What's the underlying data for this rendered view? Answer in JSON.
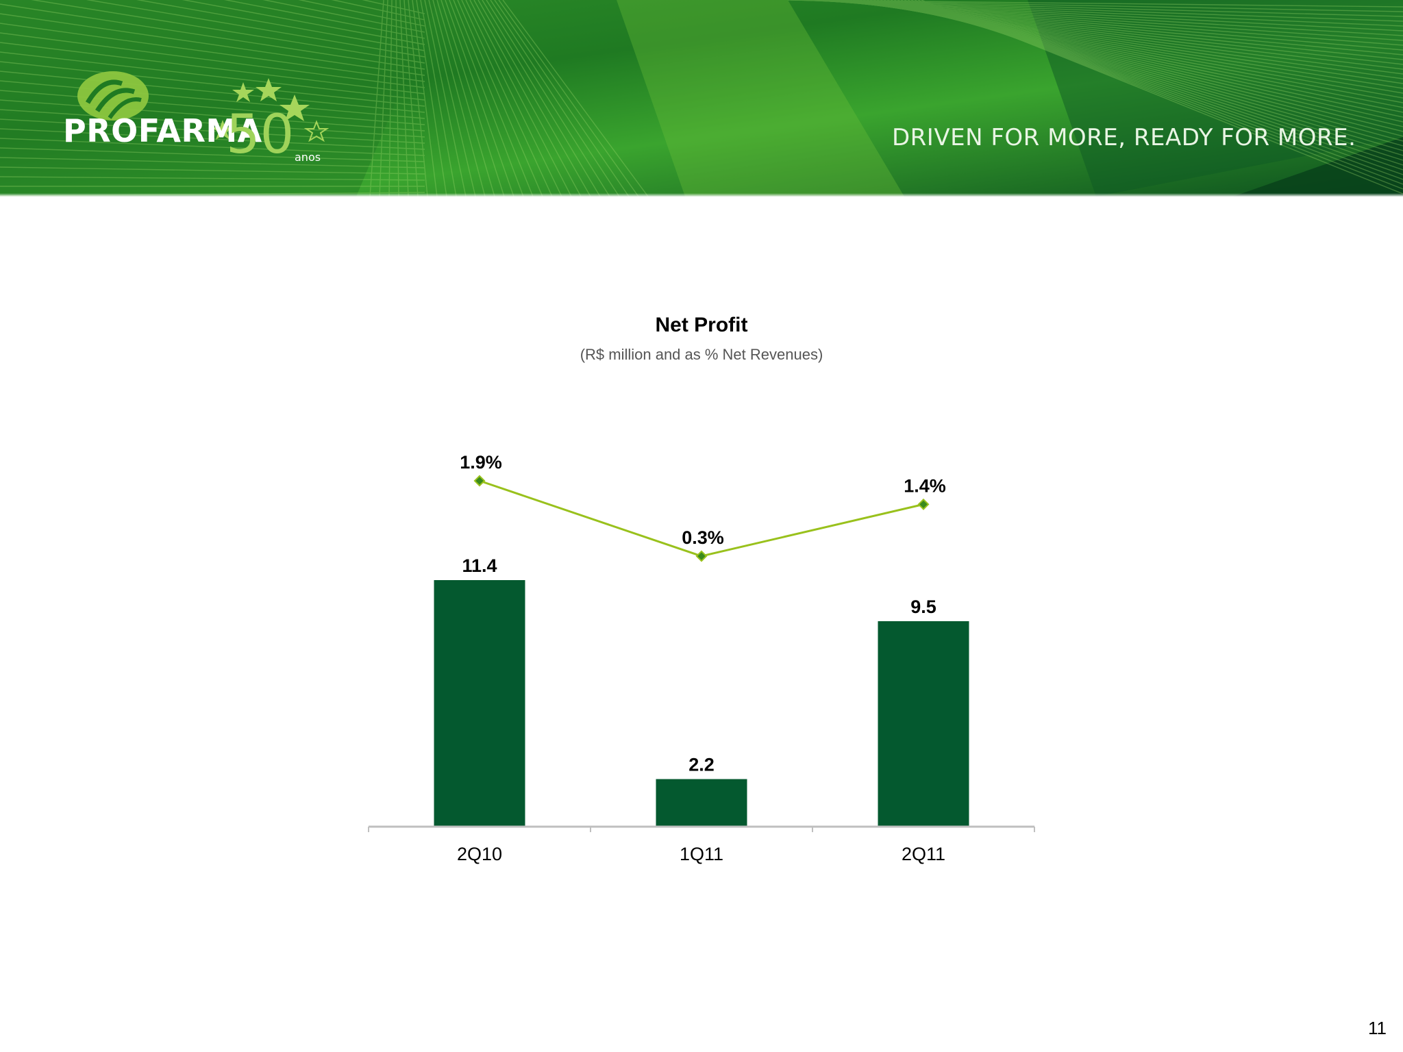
{
  "banner": {
    "brand_name": "PROFARMA",
    "brand_years": "50",
    "brand_anos": "anos",
    "tagline": "DRIVEN FOR MORE, READY FOR MORE.",
    "icons": [
      "profarma-logo-icon",
      "star-icon"
    ]
  },
  "colors": {
    "bar": "#04592F",
    "line": "#99C11C",
    "marker": "#3A8A1C",
    "axis": "#BFBFBF",
    "banner_dark": "#0E5A24",
    "banner_light": "#6CC03A"
  },
  "chart_data": {
    "type": "bar",
    "title": "Net Profit",
    "subtitle": "(R$ million and as % Net Revenues)",
    "categories": [
      "2Q10",
      "1Q11",
      "2Q11"
    ],
    "series": [
      {
        "type": "bar",
        "values": [
          11.4,
          2.2,
          9.5
        ],
        "labels": [
          "11.4",
          "2.2",
          "9.5"
        ]
      },
      {
        "type": "line",
        "values": [
          1.9,
          0.3,
          1.4
        ],
        "labels": [
          "1.9%",
          "0.3%",
          "1.4%"
        ]
      }
    ],
    "grid": false
  },
  "page_number": "11"
}
